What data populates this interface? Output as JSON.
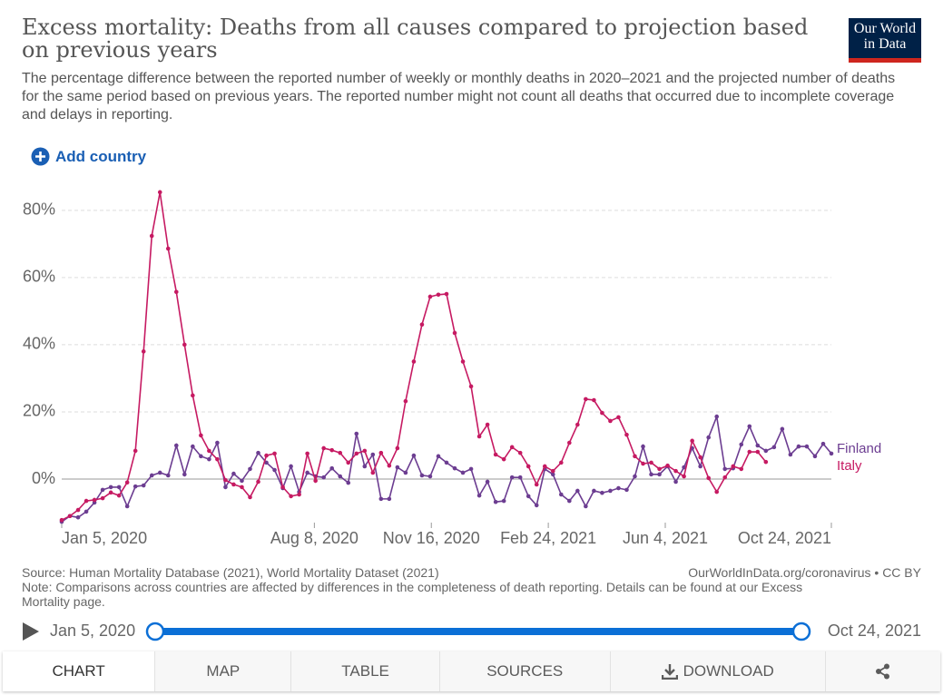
{
  "chart_data": {
    "type": "line",
    "title": "Excess mortality: Deaths from all causes compared to projection based on previous years",
    "subtitle": "The percentage difference between the reported number of weekly or monthly deaths in 2020–2021 and the projected number of deaths for the same period based on previous years. The reported number might not count all deaths that occurred due to incomplete coverage and delays in reporting.",
    "x": [
      "2020-01-05",
      "2020-01-12",
      "2020-01-19",
      "2020-01-26",
      "2020-02-02",
      "2020-02-09",
      "2020-02-16",
      "2020-02-23",
      "2020-03-01",
      "2020-03-08",
      "2020-03-15",
      "2020-03-22",
      "2020-03-29",
      "2020-04-05",
      "2020-04-12",
      "2020-04-19",
      "2020-04-26",
      "2020-05-03",
      "2020-05-10",
      "2020-05-17",
      "2020-05-24",
      "2020-05-31",
      "2020-06-07",
      "2020-06-14",
      "2020-06-21",
      "2020-06-28",
      "2020-07-05",
      "2020-07-12",
      "2020-07-19",
      "2020-07-26",
      "2020-08-02",
      "2020-08-09",
      "2020-08-16",
      "2020-08-23",
      "2020-08-30",
      "2020-09-06",
      "2020-09-13",
      "2020-09-20",
      "2020-09-27",
      "2020-10-04",
      "2020-10-11",
      "2020-10-18",
      "2020-10-25",
      "2020-11-01",
      "2020-11-08",
      "2020-11-15",
      "2020-11-22",
      "2020-11-29",
      "2020-12-06",
      "2020-12-13",
      "2020-12-20",
      "2020-12-27",
      "2021-01-03",
      "2021-01-10",
      "2021-01-17",
      "2021-01-24",
      "2021-01-31",
      "2021-02-07",
      "2021-02-14",
      "2021-02-21",
      "2021-02-28",
      "2021-03-07",
      "2021-03-14",
      "2021-03-21",
      "2021-03-28",
      "2021-04-04",
      "2021-04-11",
      "2021-04-18",
      "2021-04-25",
      "2021-05-02",
      "2021-05-09",
      "2021-05-16",
      "2021-05-23",
      "2021-05-30",
      "2021-06-06",
      "2021-06-13",
      "2021-06-20",
      "2021-06-27",
      "2021-07-04",
      "2021-07-11",
      "2021-07-18",
      "2021-07-25",
      "2021-08-01",
      "2021-08-08",
      "2021-08-15",
      "2021-08-22",
      "2021-08-29",
      "2021-09-05",
      "2021-09-12",
      "2021-09-19",
      "2021-09-26",
      "2021-10-03",
      "2021-10-10",
      "2021-10-17",
      "2021-10-24"
    ],
    "series": [
      {
        "name": "Finland",
        "color": "#6c3d91",
        "values": [
          -12.7,
          -11,
          -11.4,
          -9.7,
          -7,
          -3.2,
          -2.4,
          -2.4,
          -8.1,
          -2.2,
          -1.9,
          1.1,
          1.9,
          1.1,
          10,
          1.4,
          9.7,
          6.8,
          5.9,
          10.8,
          -2.4,
          1.6,
          -0.5,
          3,
          7.8,
          4.9,
          2.7,
          -2.7,
          3.8,
          -3.8,
          1.9,
          0.8,
          0.5,
          3.2,
          0.8,
          -1.1,
          13.5,
          3.8,
          7.3,
          -5.9,
          -5.9,
          3.5,
          1.9,
          7,
          1.1,
          0.8,
          6.8,
          4.9,
          3.2,
          1.9,
          3,
          -4.9,
          -0.8,
          -6.8,
          -6.5,
          0.5,
          0.5,
          -5.1,
          -7.8,
          3,
          1.4,
          -4.6,
          -6.5,
          -3.5,
          -8.1,
          -3.5,
          -4.1,
          -3.5,
          -2.7,
          -3.2,
          0.8,
          9.7,
          1.4,
          1.4,
          3.8,
          -0.8,
          3.5,
          9.2,
          3.8,
          12.4,
          18.6,
          3,
          3.2,
          10.3,
          15.7,
          10,
          8.4,
          9.5,
          14.9,
          7.3,
          9.7,
          9.7,
          6.8,
          10.5,
          7.6
        ]
      },
      {
        "name": "Italy",
        "color": "#c61a62",
        "values": [
          -12.2,
          -11,
          -9.2,
          -6.5,
          -6.2,
          -5.7,
          -4,
          -4.9,
          -1,
          8.4,
          38,
          72.4,
          85.4,
          68.6,
          55.7,
          40,
          24.9,
          13,
          8.4,
          5.9,
          -0.3,
          -1.6,
          -2.4,
          -5.4,
          -0.8,
          7,
          7.6,
          -2.4,
          -5.1,
          -4.6,
          7.6,
          -0.5,
          9.2,
          8.6,
          7.8,
          4.9,
          7.6,
          8.4,
          1.9,
          7.8,
          4,
          9.2,
          23.2,
          35,
          46,
          54.3,
          54.9,
          55.1,
          43.5,
          35,
          27.6,
          12.7,
          16.2,
          7.3,
          5.9,
          9.5,
          7.8,
          3.8,
          -1.6,
          3.8,
          2.4,
          4.9,
          10.8,
          16.2,
          23.8,
          23.5,
          19.7,
          17.3,
          18.4,
          13.2,
          6.8,
          4.6,
          4.9,
          3,
          4,
          2.4,
          0.8,
          11.4,
          6.5,
          0.3,
          -3.8,
          0.5,
          3.8,
          3,
          8.1,
          8.1,
          5.1,
          null,
          null,
          null,
          null,
          null,
          null,
          null,
          null
        ]
      }
    ],
    "xlim": [
      "2020-01-05",
      "2021-10-24"
    ],
    "xticks": [
      {
        "value": "2020-01-05",
        "label": "Jan 5, 2020"
      },
      {
        "value": "2020-08-08",
        "label": "Aug 8, 2020"
      },
      {
        "value": "2020-11-16",
        "label": "Nov 16, 2020"
      },
      {
        "value": "2021-02-24",
        "label": "Feb 24, 2021"
      },
      {
        "value": "2021-06-04",
        "label": "Jun 4, 2021"
      },
      {
        "value": "2021-10-24",
        "label": "Oct 24, 2021"
      }
    ],
    "ylim": [
      -13.5,
      88.6
    ],
    "yticks": [
      {
        "value": 0,
        "label": "0%"
      },
      {
        "value": 20,
        "label": "20%"
      },
      {
        "value": 40,
        "label": "40%"
      },
      {
        "value": 60,
        "label": "60%"
      },
      {
        "value": 80,
        "label": "80%"
      }
    ],
    "grid": true,
    "source": "Source: Human Mortality Database (2021), World Mortality Dataset (2021)",
    "note": "Note: Comparisons across countries are affected by differences in the completeness of death reporting. Details can be found at our Excess Mortality page."
  },
  "logo": [
    "Our World",
    "in Data"
  ],
  "site": "OurWorldInData.org/coronavirus • CC BY",
  "controls": {
    "add_country": "Add country",
    "timeline_start": "Jan 5, 2020",
    "timeline_end": "Oct 24, 2021",
    "tabs": [
      "CHART",
      "MAP",
      "TABLE",
      "SOURCES",
      "DOWNLOAD"
    ]
  }
}
